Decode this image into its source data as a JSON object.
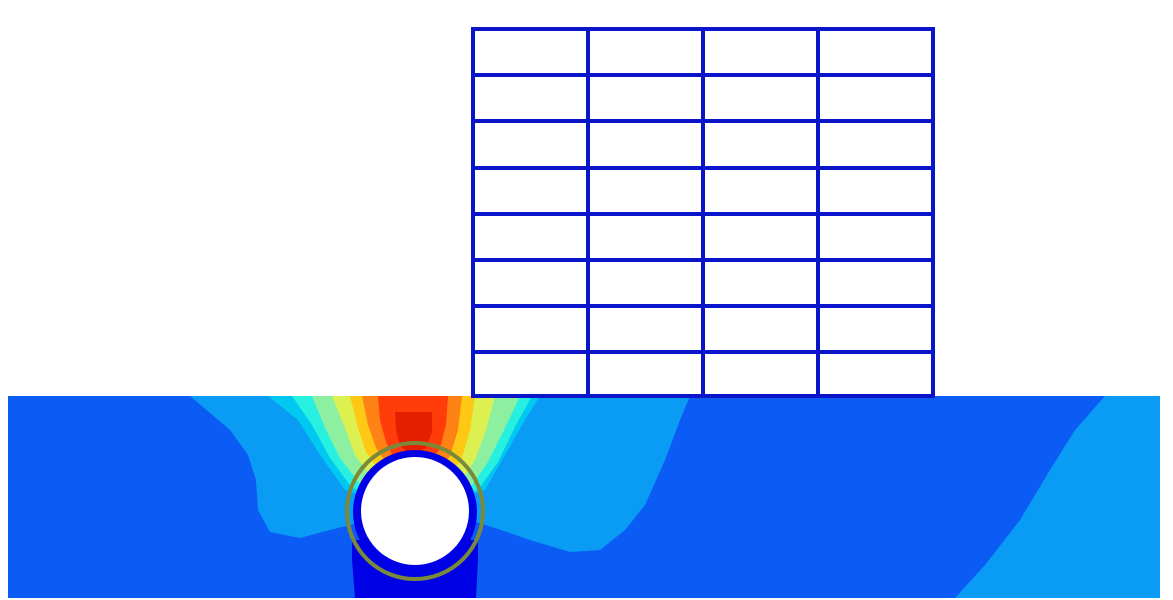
{
  "figure": {
    "kind": "finite-element contour plot",
    "structure": {
      "bays": 4,
      "storeys": 8,
      "frame_color": "#0a14c8"
    },
    "ground": {
      "base_color": "#0a5cf5",
      "contour_palette": [
        "#0000e6",
        "#0a5cf5",
        "#0a9bf5",
        "#00c8f0",
        "#28f0e0",
        "#8cf0a0",
        "#dcf050",
        "#ffc814",
        "#ff8214",
        "#ff3c0a",
        "#e61e00"
      ]
    },
    "tunnel": {
      "lining_color": "#7a8a3a",
      "opening_color": "#ffffff"
    }
  }
}
